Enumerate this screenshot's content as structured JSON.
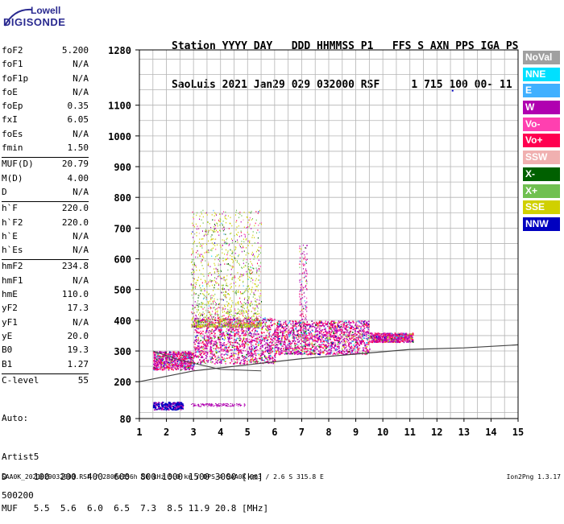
{
  "logo": {
    "line1": "Lowell",
    "line2": "DIGISONDE"
  },
  "header": {
    "line1": "Station YYYY DAY   DDD HHMMSS P1   FFS S AXN PPS IGA PS",
    "line2": "SaoLuis 2021 Jan29 029 032000 RSF     1 715 100 00- 11"
  },
  "params": {
    "group1": [
      {
        "k": "foF2",
        "v": "5.200"
      },
      {
        "k": "foF1",
        "v": "N/A"
      },
      {
        "k": "foF1p",
        "v": "N/A"
      },
      {
        "k": "foE",
        "v": "N/A"
      },
      {
        "k": "foEp",
        "v": "0.35"
      },
      {
        "k": "fxI",
        "v": "6.05"
      },
      {
        "k": "foEs",
        "v": "N/A"
      },
      {
        "k": "fmin",
        "v": "1.50"
      }
    ],
    "group2": [
      {
        "k": "MUF(D)",
        "v": "20.79"
      },
      {
        "k": "M(D)",
        "v": "4.00"
      },
      {
        "k": "D",
        "v": "N/A"
      }
    ],
    "group3": [
      {
        "k": "h`F",
        "v": "220.0"
      },
      {
        "k": "h`F2",
        "v": "220.0"
      },
      {
        "k": "h`E",
        "v": "N/A"
      },
      {
        "k": "h`Es",
        "v": "N/A"
      }
    ],
    "group4": [
      {
        "k": "hmF2",
        "v": "234.8"
      },
      {
        "k": "hmF1",
        "v": "N/A"
      },
      {
        "k": "hmE",
        "v": "110.0"
      },
      {
        "k": "yF2",
        "v": "17.3"
      },
      {
        "k": "yF1",
        "v": "N/A"
      },
      {
        "k": "yE",
        "v": "20.0"
      },
      {
        "k": "B0",
        "v": "19.3"
      },
      {
        "k": "B1",
        "v": "1.27"
      }
    ],
    "group5": [
      {
        "k": "C-level",
        "v": "55"
      }
    ]
  },
  "auto": {
    "line1": "Auto:",
    "line2": "Artist5",
    "line3": "500200"
  },
  "legend": [
    {
      "label": "NoVal",
      "color": "#a0a0a0"
    },
    {
      "label": "NNE",
      "color": "#00e0ff"
    },
    {
      "label": "E",
      "color": "#40b0ff"
    },
    {
      "label": "W",
      "color": "#b000b0"
    },
    {
      "label": "Vo-",
      "color": "#ff40b0"
    },
    {
      "label": "Vo+",
      "color": "#ff0050"
    },
    {
      "label": "SSW",
      "color": "#f0b0b0"
    },
    {
      "label": "X-",
      "color": "#006000"
    },
    {
      "label": "X+",
      "color": "#70c050"
    },
    {
      "label": "SSE",
      "color": "#d0d000"
    },
    {
      "label": "NNW",
      "color": "#0000c0"
    }
  ],
  "chart_data": {
    "type": "scatter",
    "xlabel": "",
    "ylabel": "",
    "xlim": [
      1,
      15
    ],
    "ylim": [
      80,
      1280
    ],
    "x_ticks": [
      "1",
      "2",
      "3",
      "4",
      "5",
      "6",
      "7",
      "8",
      "9",
      "10",
      "11",
      "12",
      "13",
      "14",
      "15"
    ],
    "y_ticks": [
      {
        "v": 80,
        "label": "80"
      },
      {
        "v": 200,
        "label": "200"
      },
      {
        "v": 300,
        "label": "300"
      },
      {
        "v": 400,
        "label": "400"
      },
      {
        "v": 500,
        "label": "500"
      },
      {
        "v": 600,
        "label": "600"
      },
      {
        "v": 700,
        "label": "700"
      },
      {
        "v": 800,
        "label": "800"
      },
      {
        "v": 900,
        "label": "900"
      },
      {
        "v": 1000,
        "label": "1000"
      },
      {
        "v": 1100,
        "label": "1100"
      },
      {
        "v": 1280,
        "label": "1280"
      }
    ],
    "grid": true
  },
  "bottom": {
    "line1": "D     100  200  400  600  800 1000 1500 3000 [km]",
    "line2": "MUF   5.5  5.6  6.0  6.5  7.3  8.5 11.9 20.8 [MHz]"
  },
  "footer": "SAA0K_2021029032000.RSF / 280fx256h 50 kHz 5.0 km / DPS-4 SAA0K 903 / 2.6 S 315.8 E",
  "version": "Ion2Png 1.3.17"
}
